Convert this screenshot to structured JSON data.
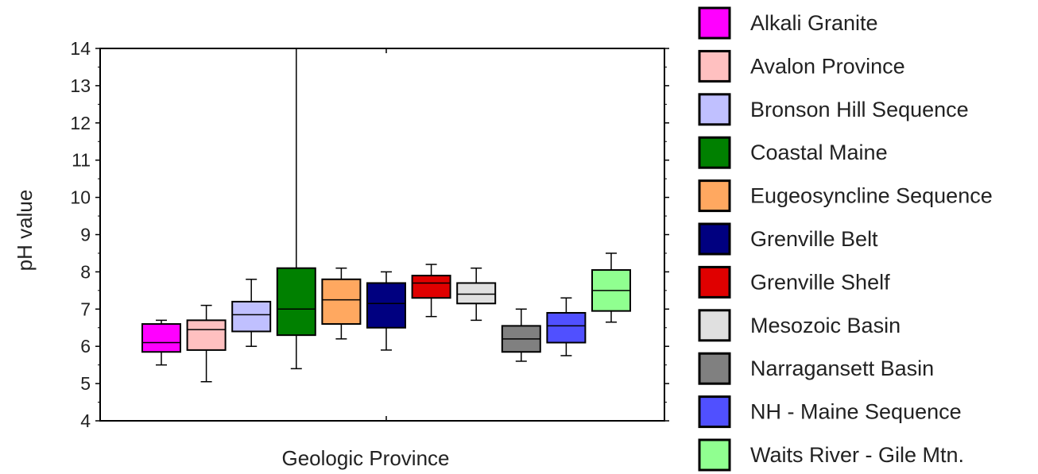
{
  "chart_data": {
    "type": "box",
    "title": "",
    "xlabel": "Geologic Province",
    "ylabel": "pH value",
    "ylim": [
      4,
      14
    ],
    "yticks": [
      4,
      5,
      6,
      7,
      8,
      9,
      10,
      11,
      12,
      13,
      14
    ],
    "grid": false,
    "legend_position": "right",
    "series": [
      {
        "name": "Alkali Granite",
        "color": "#ff00ff",
        "whisker_low": 5.5,
        "q1": 5.85,
        "median": 6.1,
        "q3": 6.6,
        "whisker_high": 6.7
      },
      {
        "name": "Avalon Province",
        "color": "#ffc0c0",
        "whisker_low": 5.05,
        "q1": 5.9,
        "median": 6.45,
        "q3": 6.7,
        "whisker_high": 7.1
      },
      {
        "name": "Bronson Hill Sequence",
        "color": "#c0c0ff",
        "whisker_low": 6.0,
        "q1": 6.4,
        "median": 6.85,
        "q3": 7.2,
        "whisker_high": 7.8
      },
      {
        "name": "Coastal Maine",
        "color": "#008000",
        "whisker_low": 5.4,
        "q1": 6.3,
        "median": 7.0,
        "q3": 8.1,
        "whisker_high": 14.0
      },
      {
        "name": "Eugeosyncline Sequence",
        "color": "#ffa860",
        "whisker_low": 6.2,
        "q1": 6.6,
        "median": 7.25,
        "q3": 7.8,
        "whisker_high": 8.1
      },
      {
        "name": "Grenville Belt",
        "color": "#000080",
        "whisker_low": 5.9,
        "q1": 6.5,
        "median": 7.15,
        "q3": 7.7,
        "whisker_high": 8.0
      },
      {
        "name": "Grenville Shelf",
        "color": "#e00000",
        "whisker_low": 6.8,
        "q1": 7.3,
        "median": 7.7,
        "q3": 7.9,
        "whisker_high": 8.2
      },
      {
        "name": "Mesozoic Basin",
        "color": "#e0e0e0",
        "whisker_low": 6.7,
        "q1": 7.15,
        "median": 7.4,
        "q3": 7.7,
        "whisker_high": 8.1
      },
      {
        "name": "Narragansett Basin",
        "color": "#808080",
        "whisker_low": 5.6,
        "q1": 5.85,
        "median": 6.2,
        "q3": 6.55,
        "whisker_high": 7.0
      },
      {
        "name": "NH - Maine Sequence",
        "color": "#5050ff",
        "whisker_low": 5.75,
        "q1": 6.1,
        "median": 6.55,
        "q3": 6.9,
        "whisker_high": 7.3
      },
      {
        "name": "Waits River - Gile Mtn.",
        "color": "#90ff90",
        "whisker_low": 6.65,
        "q1": 6.95,
        "median": 7.5,
        "q3": 8.05,
        "whisker_high": 8.5
      }
    ]
  }
}
